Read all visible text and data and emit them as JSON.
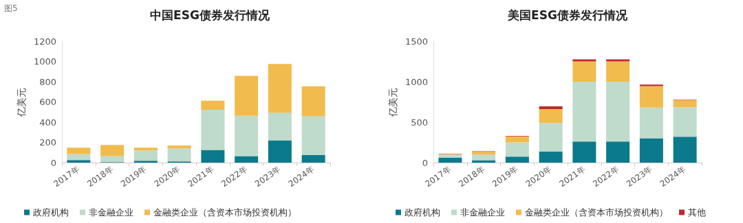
{
  "chart_data": [
    {
      "type": "bar",
      "title": "中国ESG债券发行情况",
      "ylabel": "亿美元",
      "annotations": [
        "图5"
      ],
      "stacked": true,
      "legend": "bottom",
      "grid": false,
      "categories": [
        "2017年",
        "2018年",
        "2019年",
        "2020年",
        "2021年",
        "2022年",
        "2023年",
        "2024年"
      ],
      "ylim": [
        0,
        1200
      ],
      "yticks": [
        0,
        200,
        400,
        600,
        800,
        1000,
        1200
      ],
      "series": [
        {
          "name": "政府机构",
          "color": "#0b7a8c",
          "values": [
            25,
            5,
            18,
            12,
            125,
            65,
            220,
            75
          ]
        },
        {
          "name": "非金融企业",
          "color": "#bedbcb",
          "values": [
            60,
            60,
            102,
            128,
            397,
            397,
            273,
            385
          ]
        },
        {
          "name": "金融类企业（含资本市场投资机构）",
          "color": "#f2bb4d",
          "values": [
            63,
            110,
            28,
            30,
            90,
            396,
            482,
            295
          ]
        }
      ]
    },
    {
      "type": "bar",
      "title": "美国ESG债券发行情况",
      "ylabel": "亿美元",
      "stacked": true,
      "legend": "bottom",
      "grid": false,
      "categories": [
        "2017年",
        "2018年",
        "2019年",
        "2020年",
        "2021年",
        "2022年",
        "2023年",
        "2024年"
      ],
      "ylim": [
        0,
        1500
      ],
      "yticks": [
        0,
        500,
        1000,
        1500
      ],
      "series": [
        {
          "name": "政府机构",
          "color": "#0b7a8c",
          "values": [
            60,
            30,
            75,
            135,
            260,
            260,
            300,
            320
          ]
        },
        {
          "name": "非金融企业",
          "color": "#bedbcb",
          "values": [
            40,
            70,
            175,
            355,
            740,
            740,
            380,
            365
          ]
        },
        {
          "name": "金融类企业（含资本市场投资机构）",
          "color": "#f2bb4d",
          "values": [
            5,
            35,
            75,
            170,
            250,
            250,
            265,
            90
          ]
        },
        {
          "name": "其他",
          "color": "#c0282d",
          "values": [
            5,
            5,
            5,
            35,
            25,
            25,
            20,
            5
          ]
        }
      ]
    }
  ]
}
